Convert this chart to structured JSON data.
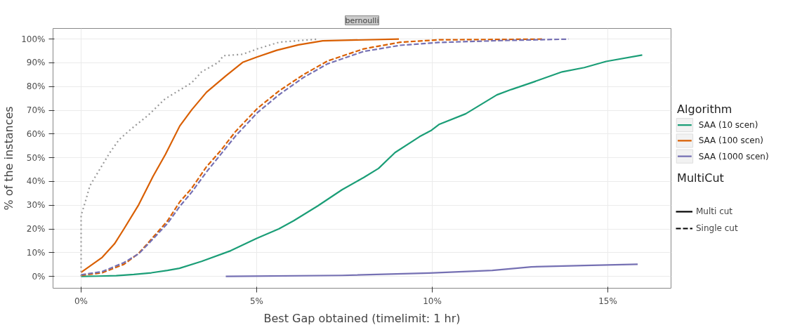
{
  "chart_data": {
    "type": "line",
    "title": "bernoulli",
    "xlabel": "Best Gap obtained (timelimit: 1 hr)",
    "ylabel": "% of the instances",
    "legend_title": "Algorithm",
    "legend": "right",
    "grid": true,
    "marker": "none",
    "annotations": [
      "MultiCut",
      "Multi cut",
      "Single cut"
    ],
    "xlim": [
      -0.8,
      16.8
    ],
    "ylim": [
      -5,
      104.5
    ],
    "xticks": [
      {
        "value": 0,
        "label": "0%"
      },
      {
        "value": 5,
        "label": "5%"
      },
      {
        "value": 10,
        "label": "10%"
      },
      {
        "value": 15,
        "label": "15%"
      }
    ],
    "yticks": [
      {
        "value": 0,
        "label": "0%"
      },
      {
        "value": 10,
        "label": "10%"
      },
      {
        "value": 20,
        "label": "20%"
      },
      {
        "value": 30,
        "label": "30%"
      },
      {
        "value": 40,
        "label": "40%"
      },
      {
        "value": 50,
        "label": "50%"
      },
      {
        "value": 60,
        "label": "60%"
      },
      {
        "value": 70,
        "label": "70%"
      },
      {
        "value": 80,
        "label": "80%"
      },
      {
        "value": 90,
        "label": "90%"
      },
      {
        "value": 100,
        "label": "100%"
      }
    ],
    "series": [
      {
        "name": "SAA (10 scen)",
        "color": "#1b9e77",
        "line_style": "solid",
        "x": [
          0,
          0.5,
          1.0,
          1.5,
          2.0,
          2.46,
          2.8,
          3.43,
          4.26,
          5.0,
          5.63,
          6.05,
          6.74,
          7.43,
          8.05,
          8.47,
          8.94,
          9.64,
          9.98,
          10.19,
          10.95,
          11.84,
          12.26,
          12.82,
          13.7,
          14.33,
          14.95,
          15.98
        ],
        "values": [
          0,
          0.1,
          0.3,
          0.8,
          1.5,
          2.5,
          3.4,
          6.3,
          10.8,
          16,
          20,
          23.4,
          29.7,
          36.5,
          41.7,
          45.5,
          52.2,
          58.9,
          61.6,
          64,
          68.5,
          76.5,
          78.8,
          81.6,
          86.2,
          88,
          90.6,
          93.3
        ]
      },
      {
        "name": "SAA (100 scen)",
        "color": "#d95f02",
        "line_style": "solid",
        "x": [
          0,
          0.6,
          0.95,
          1.22,
          1.64,
          2.05,
          2.4,
          2.81,
          3.15,
          3.57,
          4.12,
          4.6,
          5.02,
          5.57,
          6.19,
          6.88,
          9.05
        ],
        "values": [
          1.7,
          8,
          13.7,
          20,
          30.2,
          42.2,
          51.4,
          63.4,
          70.2,
          77.6,
          84.5,
          90.2,
          92.5,
          95.3,
          97.6,
          99.3,
          100
        ]
      },
      {
        "color": "#d95f02",
        "line_style": "dashed",
        "x": [
          0,
          0.6,
          1.22,
          1.64,
          2.05,
          2.46,
          2.81,
          3.15,
          3.57,
          3.98,
          4.4,
          5.02,
          5.64,
          6.33,
          7.02,
          8.05,
          9.09,
          10.19,
          13.16
        ],
        "values": [
          0.4,
          1.5,
          5.1,
          9.7,
          16.5,
          23.4,
          31.4,
          37.1,
          46.2,
          53.1,
          61.1,
          70.8,
          78.2,
          85.0,
          90.8,
          95.9,
          98.7,
          99.7,
          100
        ]
      },
      {
        "name": "SAA (1000 scen)",
        "color": "#7570b3",
        "line_style": "solid",
        "x": [
          4.12,
          7.43,
          9.92,
          11.71,
          12.82,
          14.33,
          15.85
        ],
        "values": [
          0,
          0.4,
          1.4,
          2.5,
          4,
          4.6,
          5.1
        ]
      },
      {
        "color": "#7570b3",
        "line_style": "dashed",
        "x": [
          0,
          0.6,
          1.22,
          1.64,
          2.05,
          2.46,
          2.81,
          3.15,
          3.57,
          3.98,
          4.4,
          5.02,
          5.64,
          6.33,
          7.02,
          8.05,
          9.09,
          10.19,
          12,
          13.88
        ],
        "values": [
          0.7,
          2,
          5.8,
          9.5,
          15.8,
          22.3,
          29.5,
          35.5,
          44,
          51.5,
          59.2,
          69.0,
          76.6,
          83.8,
          89.6,
          94.8,
          97.4,
          98.6,
          99.4,
          100
        ]
      },
      {
        "color": "#999999",
        "line_style": "dotted",
        "x": [
          0,
          0,
          0.12,
          0.25,
          0.53,
          0.81,
          1.08,
          1.43,
          1.91,
          2.39,
          3.15,
          3.43,
          3.91,
          4.05,
          4.6,
          5.02,
          5.64,
          6.74
        ],
        "values": [
          0,
          25.7,
          31.4,
          38.2,
          45.1,
          52,
          57.6,
          62.2,
          67.9,
          74.8,
          81.6,
          86.2,
          90.2,
          93.0,
          93.6,
          95.9,
          98.7,
          100
        ]
      }
    ]
  }
}
